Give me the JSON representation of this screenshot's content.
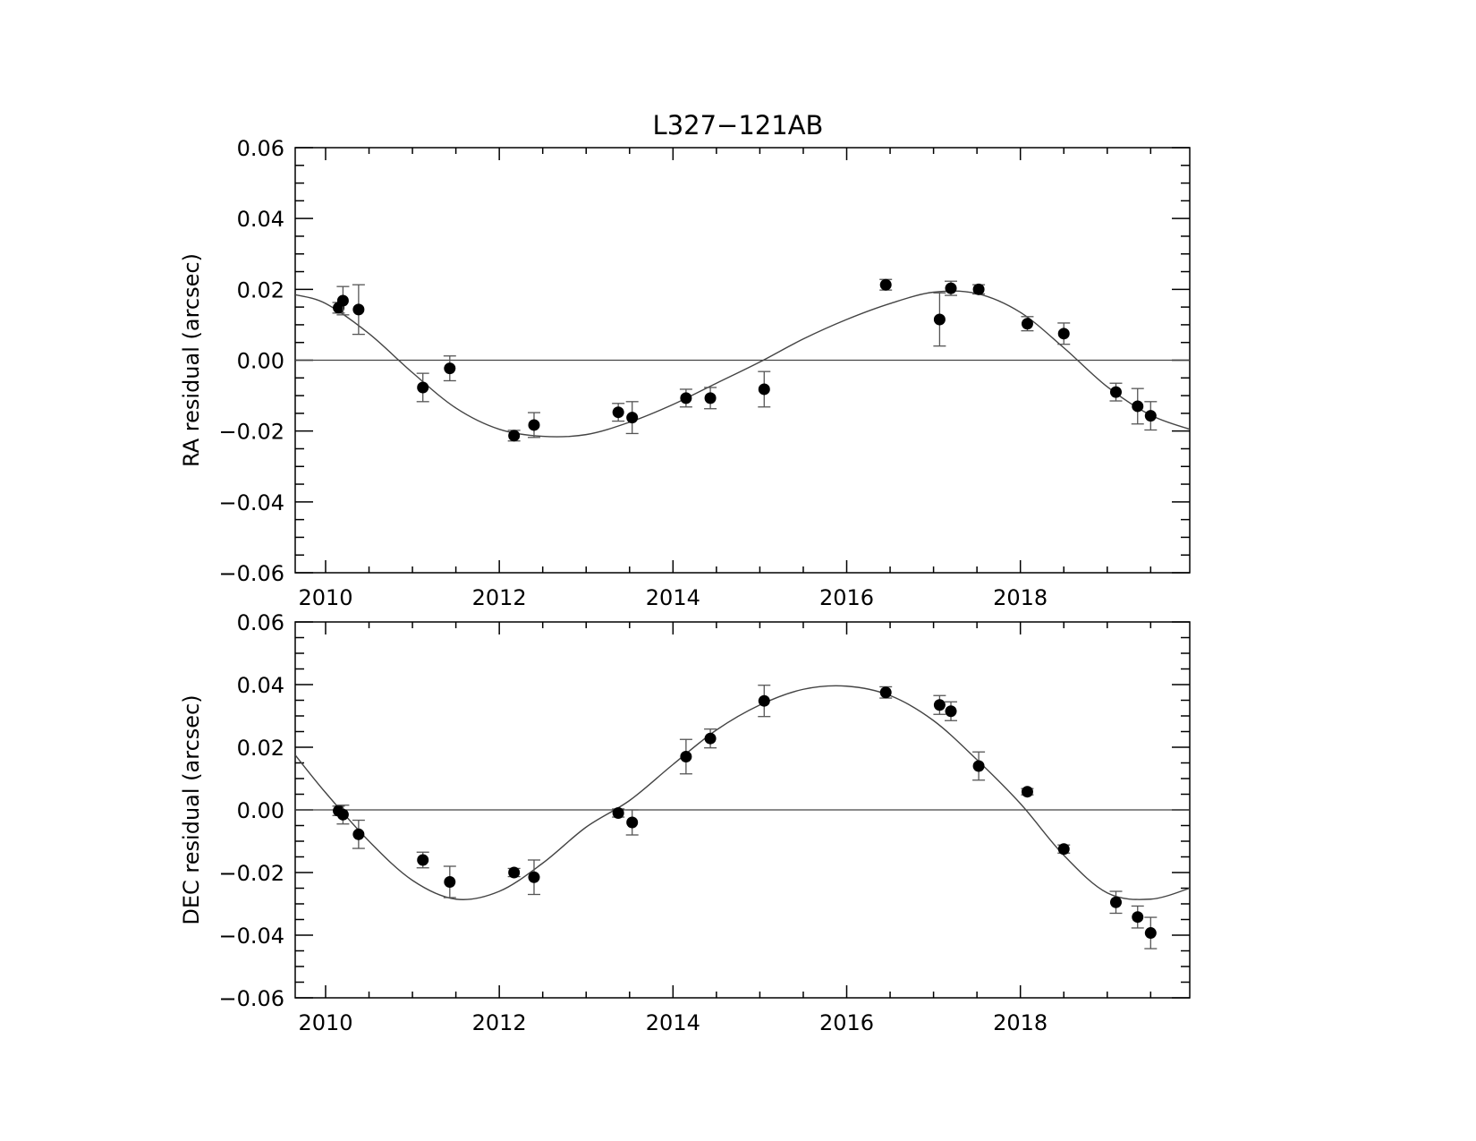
{
  "title": "L327−121AB",
  "chart_data": [
    {
      "type": "scatter",
      "name": "ra-panel",
      "title": "L327−121AB",
      "xlabel": "",
      "ylabel": "RA residual (arcsec)",
      "xlim": [
        2009.65,
        2019.95
      ],
      "ylim": [
        -0.06,
        0.06
      ],
      "xticks": [
        2010,
        2012,
        2014,
        2016,
        2018
      ],
      "xtick_labels": [
        "2010",
        "2012",
        "2014",
        "2016",
        "2018"
      ],
      "yticks": [
        -0.06,
        -0.04,
        -0.02,
        0.0,
        0.02,
        0.04,
        0.06
      ],
      "ytick_labels": [
        "−0.06",
        "−0.04",
        "−0.02",
        "0.00",
        "0.02",
        "0.04",
        "0.06"
      ],
      "zero_line": true,
      "grid": false,
      "points": [
        {
          "x": 2010.15,
          "y": 0.0148,
          "err": 0.0015
        },
        {
          "x": 2010.2,
          "y": 0.0168,
          "err": 0.004
        },
        {
          "x": 2010.38,
          "y": 0.0143,
          "err": 0.007
        },
        {
          "x": 2011.12,
          "y": -0.0077,
          "err": 0.004
        },
        {
          "x": 2011.43,
          "y": -0.0023,
          "err": 0.0035
        },
        {
          "x": 2012.17,
          "y": -0.0213,
          "err": 0.0015
        },
        {
          "x": 2012.4,
          "y": -0.0183,
          "err": 0.0035
        },
        {
          "x": 2013.37,
          "y": -0.0147,
          "err": 0.0025
        },
        {
          "x": 2013.53,
          "y": -0.0162,
          "err": 0.0045
        },
        {
          "x": 2014.15,
          "y": -0.0107,
          "err": 0.0025
        },
        {
          "x": 2014.43,
          "y": -0.0107,
          "err": 0.003
        },
        {
          "x": 2015.05,
          "y": -0.0082,
          "err": 0.005
        },
        {
          "x": 2016.45,
          "y": 0.0213,
          "err": 0.0015
        },
        {
          "x": 2017.07,
          "y": 0.0115,
          "err": 0.0075
        },
        {
          "x": 2017.2,
          "y": 0.0203,
          "err": 0.002
        },
        {
          "x": 2017.52,
          "y": 0.02,
          "err": 0.0013
        },
        {
          "x": 2018.08,
          "y": 0.0103,
          "err": 0.002
        },
        {
          "x": 2018.5,
          "y": 0.0075,
          "err": 0.003
        },
        {
          "x": 2019.1,
          "y": -0.009,
          "err": 0.0025
        },
        {
          "x": 2019.35,
          "y": -0.013,
          "err": 0.005
        },
        {
          "x": 2019.5,
          "y": -0.0157,
          "err": 0.004
        }
      ],
      "curve": {
        "x": [
          2009.65,
          2010.0,
          2010.5,
          2011.0,
          2011.5,
          2012.0,
          2012.5,
          2013.0,
          2013.5,
          2014.0,
          2014.5,
          2015.0,
          2015.5,
          2016.0,
          2016.5,
          2017.0,
          2017.5,
          2018.0,
          2018.5,
          2019.0,
          2019.5,
          2019.95
        ],
        "y": [
          0.0185,
          0.016,
          0.0075,
          -0.0035,
          -0.0135,
          -0.0195,
          -0.0215,
          -0.021,
          -0.0175,
          -0.0125,
          -0.0065,
          -0.0005,
          0.006,
          0.0115,
          0.016,
          0.0192,
          0.0188,
          0.0135,
          0.0035,
          -0.0075,
          -0.0155,
          -0.0195
        ]
      }
    },
    {
      "type": "scatter",
      "name": "dec-panel",
      "title": "",
      "xlabel": "",
      "ylabel": "DEC residual (arcsec)",
      "xlim": [
        2009.65,
        2019.95
      ],
      "ylim": [
        -0.06,
        0.06
      ],
      "xticks": [
        2010,
        2012,
        2014,
        2016,
        2018
      ],
      "xtick_labels": [
        "2010",
        "2012",
        "2014",
        "2016",
        "2018"
      ],
      "yticks": [
        -0.06,
        -0.04,
        -0.02,
        0.0,
        0.02,
        0.04,
        0.06
      ],
      "ytick_labels": [
        "−0.06",
        "−0.04",
        "−0.02",
        "0.00",
        "0.02",
        "0.04",
        "0.06"
      ],
      "zero_line": true,
      "grid": false,
      "points": [
        {
          "x": 2010.15,
          "y": -0.0003,
          "err": 0.0015
        },
        {
          "x": 2010.2,
          "y": -0.0015,
          "err": 0.003
        },
        {
          "x": 2010.38,
          "y": -0.0078,
          "err": 0.0045
        },
        {
          "x": 2011.12,
          "y": -0.016,
          "err": 0.0025
        },
        {
          "x": 2011.43,
          "y": -0.023,
          "err": 0.005
        },
        {
          "x": 2012.17,
          "y": -0.02,
          "err": 0.0013
        },
        {
          "x": 2012.4,
          "y": -0.0215,
          "err": 0.0055
        },
        {
          "x": 2013.37,
          "y": -0.001,
          "err": 0.0013
        },
        {
          "x": 2013.53,
          "y": -0.004,
          "err": 0.004
        },
        {
          "x": 2014.15,
          "y": 0.017,
          "err": 0.0055
        },
        {
          "x": 2014.43,
          "y": 0.0228,
          "err": 0.003
        },
        {
          "x": 2015.05,
          "y": 0.0348,
          "err": 0.005
        },
        {
          "x": 2016.45,
          "y": 0.0375,
          "err": 0.0018
        },
        {
          "x": 2017.07,
          "y": 0.0335,
          "err": 0.003
        },
        {
          "x": 2017.2,
          "y": 0.0315,
          "err": 0.003
        },
        {
          "x": 2017.52,
          "y": 0.014,
          "err": 0.0045
        },
        {
          "x": 2018.08,
          "y": 0.0058,
          "err": 0.001
        },
        {
          "x": 2018.5,
          "y": -0.0125,
          "err": 0.0013
        },
        {
          "x": 2019.1,
          "y": -0.0295,
          "err": 0.0035
        },
        {
          "x": 2019.35,
          "y": -0.0342,
          "err": 0.0035
        },
        {
          "x": 2019.5,
          "y": -0.0393,
          "err": 0.005
        }
      ],
      "curve": {
        "x": [
          2009.65,
          2010.0,
          2010.5,
          2011.0,
          2011.5,
          2012.0,
          2012.5,
          2013.0,
          2013.5,
          2014.0,
          2014.5,
          2015.0,
          2015.5,
          2016.0,
          2016.5,
          2017.0,
          2017.5,
          2018.0,
          2018.5,
          2019.0,
          2019.5,
          2019.95
        ],
        "y": [
          0.0175,
          0.0055,
          -0.01,
          -0.0225,
          -0.0285,
          -0.026,
          -0.017,
          -0.0055,
          0.003,
          0.0145,
          0.0255,
          0.0335,
          0.0385,
          0.0395,
          0.0365,
          0.0285,
          0.016,
          0.002,
          -0.0145,
          -0.0265,
          -0.0285,
          -0.025
        ]
      }
    }
  ]
}
